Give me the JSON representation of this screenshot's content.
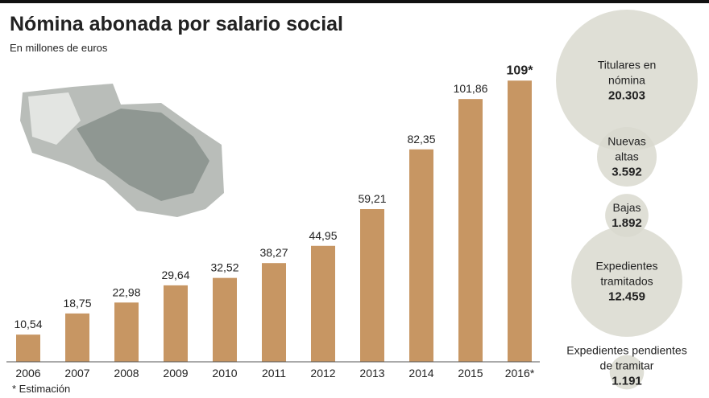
{
  "chart_data": [
    {
      "type": "bar",
      "title": "Nómina abonada por salario social",
      "subtitle": "En millones de euros",
      "categories": [
        "2006",
        "2007",
        "2008",
        "2009",
        "2010",
        "2011",
        "2012",
        "2013",
        "2014",
        "2015",
        "2016*"
      ],
      "values": [
        10.54,
        18.75,
        22.98,
        29.64,
        32.52,
        38.27,
        44.95,
        59.21,
        82.35,
        101.86,
        109
      ],
      "value_labels": [
        "10,54",
        "18,75",
        "22,98",
        "29,64",
        "32,52",
        "38,27",
        "44,95",
        "59,21",
        "82,35",
        "101,86",
        "109*"
      ],
      "color": "#c79663",
      "ylim": [
        0,
        115
      ],
      "note": "* Estimación"
    },
    {
      "type": "bubble",
      "color": "#d9d9cf",
      "categories": [
        "Titulares en nómina",
        "Nuevas altas",
        "Bajas",
        "Expedientes tramitados",
        "Expedientes pendientes de tramitar"
      ],
      "values": [
        20303,
        3592,
        1892,
        12459,
        1191
      ],
      "value_labels": [
        "20.303",
        "3.592",
        "1.892",
        "12.459",
        "1.191"
      ]
    }
  ]
}
